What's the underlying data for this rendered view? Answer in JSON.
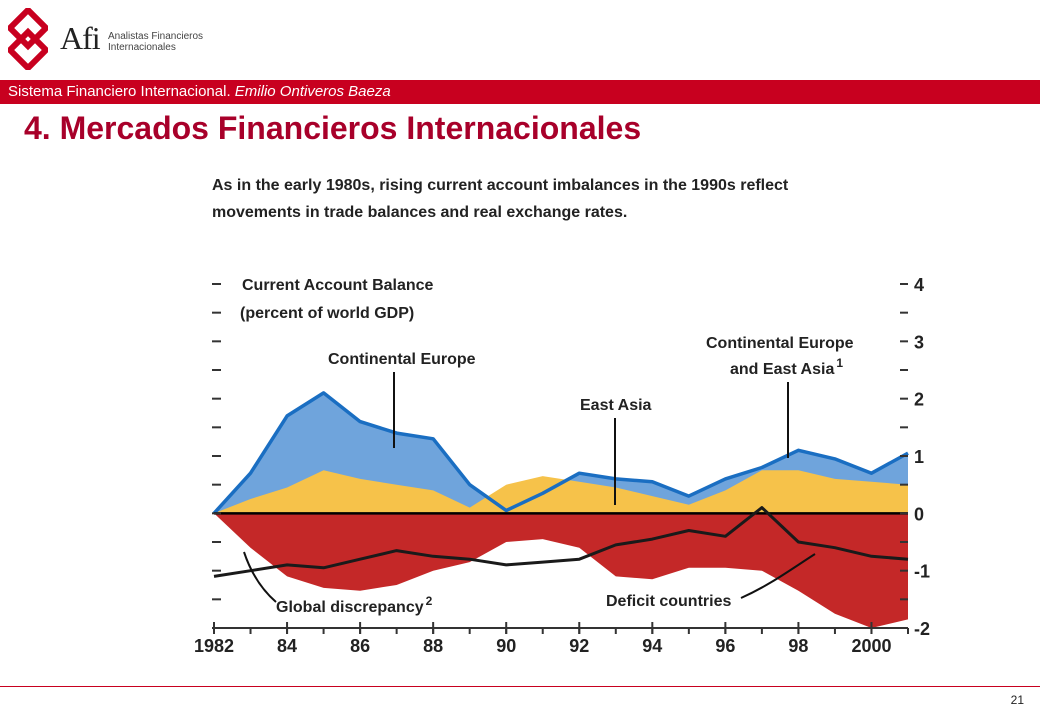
{
  "header": {
    "brand_name": "Afi",
    "brand_subtitle_line1": "Analistas Financieros",
    "brand_subtitle_line2": "Internacionales",
    "bar_text": "Sistema Financiero Internacional.",
    "bar_author": "Emilio Ontiveros Baeza",
    "accent_color": "#c8001f"
  },
  "page_title": "4. Mercados Financieros Internacionales",
  "page_number": "21",
  "chart_data": {
    "type": "area",
    "title_line1": "As in the early 1980s, rising current account imbalances in the 1990s reflect",
    "title_line2": "movements in trade balances and real exchange rates.",
    "ylabel_line1": "Current Account Balance",
    "ylabel_line2": "(percent of world GDP)",
    "x": [
      1982,
      1983,
      1984,
      1985,
      1986,
      1987,
      1988,
      1989,
      1990,
      1991,
      1992,
      1993,
      1994,
      1995,
      1996,
      1997,
      1998,
      1999,
      2000,
      2001
    ],
    "x_tick_labels": [
      "1982",
      "84",
      "86",
      "88",
      "90",
      "92",
      "94",
      "96",
      "98",
      "2000"
    ],
    "x_tick_values": [
      1982,
      1984,
      1986,
      1988,
      1990,
      1992,
      1994,
      1996,
      1998,
      2000
    ],
    "xlim": [
      1982,
      2001
    ],
    "ylim": [
      -2,
      4
    ],
    "y_ticks": [
      -2,
      -1,
      0,
      1,
      2,
      3,
      4
    ],
    "y_tick_labels": [
      "-2",
      "-1",
      "0",
      "1",
      "2",
      "3",
      "4"
    ],
    "series": [
      {
        "name": "Continental Europe",
        "values": [
          0,
          0.7,
          1.7,
          2.1,
          1.6,
          1.4,
          1.3,
          0.5,
          0.05,
          0.35,
          0.7,
          0.6,
          0.55,
          0.3,
          0.6,
          0.8,
          1.1,
          0.95,
          0.7,
          1.05
        ]
      },
      {
        "name": "East Asia",
        "values": [
          0,
          0.25,
          0.45,
          0.75,
          0.6,
          0.5,
          0.4,
          0.1,
          0.5,
          0.65,
          0.55,
          0.45,
          0.3,
          0.15,
          0.4,
          0.75,
          0.75,
          0.6,
          0.55,
          0.5
        ]
      },
      {
        "name": "Deficit countries",
        "values": [
          0,
          -0.6,
          -1.1,
          -1.3,
          -1.35,
          -1.25,
          -1.0,
          -0.85,
          -0.5,
          -0.45,
          -0.6,
          -1.1,
          -1.15,
          -0.95,
          -0.95,
          -1.0,
          -1.35,
          -1.75,
          -2.0,
          -1.85
        ]
      },
      {
        "name": "Global discrepancy",
        "values": [
          -1.1,
          -1.0,
          -0.9,
          -0.95,
          -0.8,
          -0.65,
          -0.75,
          -0.8,
          -0.9,
          -0.85,
          -0.8,
          -0.55,
          -0.45,
          -0.3,
          -0.4,
          0.1,
          -0.5,
          -0.6,
          -0.75,
          -0.8
        ]
      }
    ],
    "annotations": [
      {
        "text": "Continental Europe",
        "series": "Continental Europe"
      },
      {
        "text": "East Asia",
        "series": "East Asia"
      },
      {
        "text": "Continental Europe",
        "text2": "and East Asia",
        "sup": "1"
      },
      {
        "text": "Deficit countries",
        "series": "Deficit countries"
      },
      {
        "text": "Global discrepancy",
        "sup": "2",
        "series": "Global discrepancy"
      }
    ],
    "colors": {
      "europe_fill": "#6fa4dc",
      "europe_line": "#1a6ec2",
      "asia_fill": "#f6c24a",
      "deficit_fill": "#c42828",
      "discrepancy_line": "#1a1a1a",
      "zero_line": "#000000"
    },
    "grid": false
  }
}
